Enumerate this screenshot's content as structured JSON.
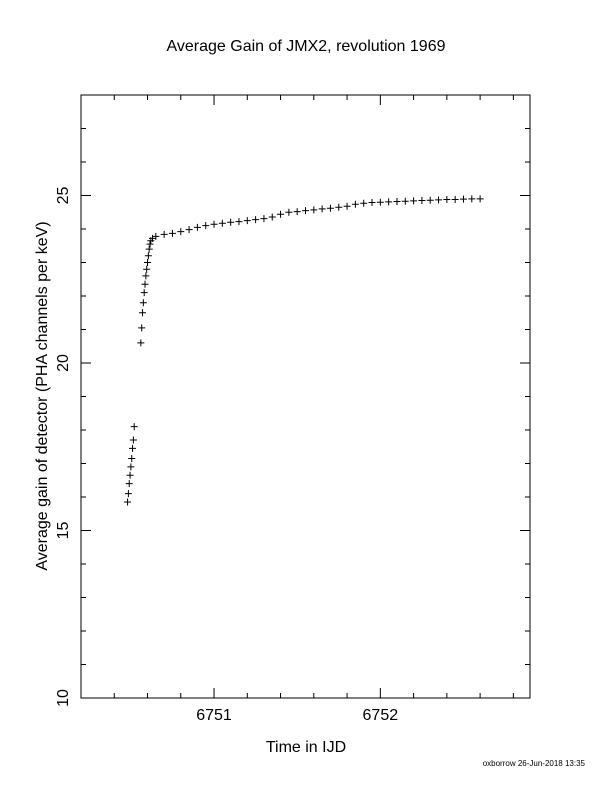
{
  "chart_data": {
    "type": "scatter",
    "title": "Average Gain of JMX2, revolution 1969",
    "x_label": "Time in IJD",
    "y_label": "Average gain of detector (PHA channels per keV)",
    "footer": "oxborrow 26-Jun-2018 13:35",
    "xlim": [
      6750.2,
      6752.9
    ],
    "ylim": [
      10,
      28
    ],
    "xticks": [
      6751,
      6752
    ],
    "yticks": [
      10,
      15,
      20,
      25
    ],
    "xminor_ticks": [
      6750.4,
      6750.6,
      6750.8,
      6751.2,
      6751.4,
      6751.6,
      6751.8,
      6752.2,
      6752.4,
      6752.6,
      6752.8
    ],
    "yminor_ticks": [
      11,
      12,
      13,
      14,
      16,
      17,
      18,
      19,
      21,
      22,
      23,
      24,
      26,
      27
    ],
    "marker": "+",
    "color": "#000000",
    "x": [
      6750.48,
      6750.485,
      6750.49,
      6750.495,
      6750.5,
      6750.505,
      6750.51,
      6750.515,
      6750.52,
      6750.56,
      6750.565,
      6750.57,
      6750.575,
      6750.58,
      6750.585,
      6750.59,
      6750.595,
      6750.6,
      6750.605,
      6750.61,
      6750.615,
      6750.62,
      6750.63,
      6750.65,
      6750.7,
      6750.75,
      6750.8,
      6750.85,
      6750.9,
      6750.95,
      6751.0,
      6751.05,
      6751.1,
      6751.15,
      6751.2,
      6751.25,
      6751.3,
      6751.35,
      6751.4,
      6751.45,
      6751.5,
      6751.55,
      6751.6,
      6751.65,
      6751.7,
      6751.75,
      6751.8,
      6751.85,
      6751.9,
      6751.95,
      6752.0,
      6752.05,
      6752.1,
      6752.15,
      6752.2,
      6752.25,
      6752.3,
      6752.35,
      6752.4,
      6752.45,
      6752.5,
      6752.55,
      6752.6
    ],
    "values": [
      15.85,
      16.1,
      16.4,
      16.65,
      16.9,
      17.15,
      17.45,
      17.7,
      18.1,
      20.6,
      21.05,
      21.5,
      21.8,
      22.1,
      22.35,
      22.6,
      22.8,
      23.0,
      23.2,
      23.4,
      23.55,
      23.65,
      23.72,
      23.78,
      23.84,
      23.87,
      23.92,
      23.98,
      24.05,
      24.1,
      24.14,
      24.17,
      24.2,
      24.22,
      24.25,
      24.28,
      24.31,
      24.36,
      24.44,
      24.5,
      24.52,
      24.55,
      24.57,
      24.6,
      24.62,
      24.65,
      24.68,
      24.74,
      24.77,
      24.79,
      24.8,
      24.81,
      24.82,
      24.83,
      24.84,
      24.85,
      24.86,
      24.87,
      24.88,
      24.88,
      24.89,
      24.9,
      24.9
    ]
  }
}
